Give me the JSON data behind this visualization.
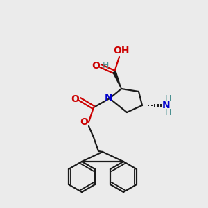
{
  "background_color": "#ebebeb",
  "bond_color": "#1a1a1a",
  "nitrogen_color": "#0000cc",
  "oxygen_color": "#cc0000",
  "hydrogen_color": "#4a9090",
  "line_width": 1.6,
  "fig_size": [
    3.0,
    3.0
  ],
  "dpi": 100,
  "xlim": [
    0,
    300
  ],
  "ylim": [
    0,
    300
  ]
}
